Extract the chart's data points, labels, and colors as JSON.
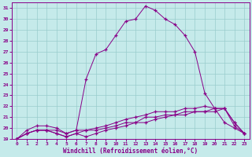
{
  "xlabel": "Windchill (Refroidissement éolien,°C)",
  "ylabel": "",
  "xlim": [
    -0.5,
    23.5
  ],
  "ylim": [
    19,
    31.5
  ],
  "xticks": [
    0,
    1,
    2,
    3,
    4,
    5,
    6,
    7,
    8,
    9,
    10,
    11,
    12,
    13,
    14,
    15,
    16,
    17,
    18,
    19,
    20,
    21,
    22,
    23
  ],
  "yticks": [
    19,
    20,
    21,
    22,
    23,
    24,
    25,
    26,
    27,
    28,
    29,
    30,
    31
  ],
  "bg_color": "#c5eaea",
  "line_color": "#880088",
  "grid_color": "#99cccc",
  "lines": [
    {
      "x": [
        0,
        1,
        2,
        3,
        4,
        5,
        6,
        7,
        8,
        9,
        10,
        11,
        12,
        13,
        14,
        15,
        16,
        17,
        18,
        19,
        20,
        21,
        22,
        23
      ],
      "y": [
        19,
        19.8,
        20.2,
        20.2,
        20.0,
        19.5,
        19.8,
        24.5,
        26.8,
        27.2,
        28.5,
        29.8,
        30.0,
        31.2,
        30.8,
        30.0,
        29.5,
        28.5,
        27.0,
        23.2,
        21.8,
        20.5,
        20.0,
        19.5
      ]
    },
    {
      "x": [
        0,
        1,
        2,
        3,
        4,
        5,
        6,
        7,
        8,
        9,
        10,
        11,
        12,
        13,
        14,
        15,
        16,
        17,
        18,
        19,
        20,
        21,
        22,
        23
      ],
      "y": [
        19,
        19.5,
        19.8,
        19.8,
        19.8,
        19.5,
        19.8,
        19.8,
        20.0,
        20.2,
        20.5,
        20.8,
        21.0,
        21.2,
        21.5,
        21.5,
        21.5,
        21.8,
        21.8,
        22.0,
        21.8,
        21.8,
        20.5,
        19.5
      ]
    },
    {
      "x": [
        0,
        1,
        2,
        3,
        4,
        5,
        6,
        7,
        8,
        9,
        10,
        11,
        12,
        13,
        14,
        15,
        16,
        17,
        18,
        19,
        20,
        21,
        22,
        23
      ],
      "y": [
        19,
        19.5,
        19.8,
        19.8,
        19.5,
        19.2,
        19.5,
        19.2,
        19.5,
        19.8,
        20.0,
        20.2,
        20.5,
        20.5,
        20.8,
        21.0,
        21.2,
        21.2,
        21.5,
        21.5,
        21.5,
        21.8,
        20.2,
        19.5
      ]
    },
    {
      "x": [
        0,
        1,
        2,
        3,
        4,
        5,
        6,
        7,
        8,
        9,
        10,
        11,
        12,
        13,
        14,
        15,
        16,
        17,
        18,
        19,
        20,
        21,
        22,
        23
      ],
      "y": [
        19,
        19.5,
        19.8,
        19.8,
        19.5,
        19.2,
        19.5,
        19.8,
        19.8,
        20.0,
        20.2,
        20.5,
        20.5,
        21.0,
        21.0,
        21.2,
        21.2,
        21.5,
        21.5,
        21.5,
        21.8,
        21.8,
        20.5,
        19.5
      ]
    }
  ]
}
